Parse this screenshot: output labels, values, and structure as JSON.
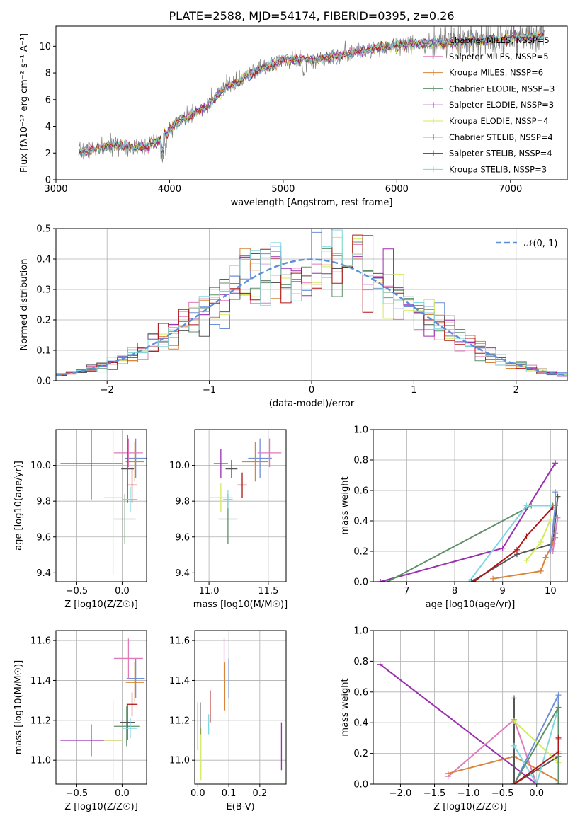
{
  "figure_title": "PLATE=2588, MJD=54174, FIBERID=0395, z=0.26",
  "colors": {
    "Chabrier MILES": "#6f8fd8",
    "Salpeter MILES": "#e07ab8",
    "Kroupa MILES": "#d9843a",
    "Chabrier ELODIE": "#5f8f6a",
    "Salpeter ELODIE": "#9b2eb0",
    "Kroupa ELODIE": "#d4ea5c",
    "Chabrier STELIB": "#555555",
    "Salpeter STELIB": "#b01515",
    "Kroupa STELIB": "#7fd8e0",
    "data": "#808080",
    "normal": "#5b8fd8"
  },
  "chart_data": [
    {
      "type": "line",
      "title": "PLATE=2588, MJD=54174, FIBERID=0395, z=0.26",
      "xlabel": "wavelength [Angstrom, rest frame]",
      "ylabel": "Flux [fλ10⁻¹⁷ erg cm⁻² s⁻¹ A⁻¹]",
      "xlim": [
        3000,
        7500
      ],
      "ylim": [
        0,
        11.5
      ],
      "xticks": [
        "3000",
        "4000",
        "5000",
        "6000",
        "7000"
      ],
      "yticks": [
        "0",
        "2",
        "4",
        "6",
        "8",
        "10"
      ],
      "grid": false,
      "legend_position": "top-right",
      "legend": [
        "Chabrier MILES, NSSP=5",
        "Salpeter MILES, NSSP=5",
        "Kroupa MILES, NSSP=6",
        "Chabrier ELODIE, NSSP=3",
        "Salpeter ELODIE, NSSP=3",
        "Kroupa ELODIE, NSSP=4",
        "Chabrier STELIB, NSSP=4",
        "Salpeter STELIB, NSSP=4",
        "Kroupa STELIB, NSSP=3"
      ],
      "continuum": {
        "x": [
          3200,
          3350,
          3550,
          3750,
          3900,
          4050,
          4300,
          4500,
          4800,
          5000,
          5300,
          5600,
          6000,
          6300,
          6600,
          7000,
          7300
        ],
        "y": [
          2.1,
          2.3,
          2.6,
          2.4,
          2.9,
          4.2,
          5.4,
          6.9,
          8.3,
          9.0,
          9.0,
          9.5,
          10.1,
          10.2,
          10.3,
          10.6,
          10.8
        ]
      },
      "data_range": [
        3200,
        7300
      ]
    },
    {
      "type": "line",
      "xlabel": "(data-model)/error",
      "ylabel": "Normed distribution",
      "xlim": [
        -2.5,
        2.5
      ],
      "ylim": [
        0,
        0.5
      ],
      "xticks": [
        "−2",
        "−1",
        "0",
        "1",
        "2"
      ],
      "yticks": [
        "0.0",
        "0.1",
        "0.2",
        "0.3",
        "0.4",
        "0.5"
      ],
      "grid": true,
      "legend_position": "top-right",
      "legend": [
        "𝒩(0, 1)"
      ],
      "bin_width": 0.1
    },
    {
      "type": "scatter",
      "xlabel": "Z [log10(Z/Z☉)]",
      "ylabel": "age  [log10(age/yr)]",
      "xlim": [
        -0.73,
        0.27
      ],
      "ylim": [
        9.35,
        10.2
      ],
      "xticks": [
        "−0.5",
        "0.0"
      ],
      "yticks": [
        "9.4",
        "9.6",
        "9.8",
        "10.0"
      ],
      "points": [
        {
          "name": "Chabrier MILES",
          "x": 0.15,
          "y": 10.04,
          "xerr": 0.12,
          "yerr": 0.11
        },
        {
          "name": "Salpeter MILES",
          "x": 0.07,
          "y": 10.07,
          "xerr": 0.16,
          "yerr": 0.08
        },
        {
          "name": "Kroupa MILES",
          "x": 0.14,
          "y": 10.02,
          "xerr": 0.1,
          "yerr": 0.11
        },
        {
          "name": "Chabrier ELODIE",
          "x": 0.03,
          "y": 9.7,
          "xerr": 0.12,
          "yerr": 0.14
        },
        {
          "name": "Salpeter ELODIE",
          "x": -0.34,
          "y": 10.01,
          "xerr": 0.34,
          "yerr": 0.2
        },
        {
          "name": "Kroupa ELODIE",
          "x": -0.1,
          "y": 9.82,
          "xerr": 0.1,
          "yerr": 0.43
        },
        {
          "name": "Chabrier STELIB",
          "x": 0.06,
          "y": 9.98,
          "xerr": 0.07,
          "yerr": 0.19
        },
        {
          "name": "Salpeter STELIB",
          "x": 0.11,
          "y": 9.89,
          "xerr": 0.06,
          "yerr": 0.1
        },
        {
          "name": "Kroupa STELIB",
          "x": 0.09,
          "y": 9.81,
          "xerr": 0.08,
          "yerr": 0.07
        }
      ]
    },
    {
      "type": "scatter",
      "xlabel": "mass [log10(M/M☉)]",
      "ylim": [
        9.35,
        10.2
      ],
      "xlim": [
        10.88,
        11.65
      ],
      "xticks": [
        "11.0",
        "11.5"
      ],
      "yticks": [
        "9.4",
        "9.6",
        "9.8",
        "10.0"
      ],
      "points": [
        {
          "name": "Chabrier MILES",
          "x": 11.43,
          "y": 10.04,
          "xerr": 0.1,
          "yerr": 0.11
        },
        {
          "name": "Salpeter MILES",
          "x": 11.51,
          "y": 10.07,
          "xerr": 0.1,
          "yerr": 0.08
        },
        {
          "name": "Kroupa MILES",
          "x": 11.39,
          "y": 10.02,
          "xerr": 0.11,
          "yerr": 0.11
        },
        {
          "name": "Chabrier ELODIE",
          "x": 11.16,
          "y": 9.7,
          "xerr": 0.08,
          "yerr": 0.14
        },
        {
          "name": "Salpeter ELODIE",
          "x": 11.1,
          "y": 10.01,
          "xerr": 0.06,
          "yerr": 0.08
        },
        {
          "name": "Kroupa ELODIE",
          "x": 11.1,
          "y": 9.82,
          "xerr": 0.1,
          "yerr": 0.08
        },
        {
          "name": "Chabrier STELIB",
          "x": 11.19,
          "y": 9.98,
          "xerr": 0.05,
          "yerr": 0.05
        },
        {
          "name": "Salpeter STELIB",
          "x": 11.28,
          "y": 9.89,
          "xerr": 0.04,
          "yerr": 0.07
        },
        {
          "name": "Kroupa STELIB",
          "x": 11.16,
          "y": 9.81,
          "xerr": 0.04,
          "yerr": 0.05
        }
      ]
    },
    {
      "type": "line",
      "xlabel": "age  [log10(age/yr)]",
      "ylabel": "mass weight",
      "xlim": [
        6.3,
        10.35
      ],
      "ylim": [
        0,
        1.0
      ],
      "xticks": [
        "7",
        "8",
        "9",
        "10"
      ],
      "yticks": [
        "0.0",
        "0.2",
        "0.4",
        "0.6",
        "0.8",
        "1.0"
      ],
      "grid": true,
      "series": [
        {
          "name": "Salpeter ELODIE",
          "x": [
            6.45,
            9.0,
            10.1
          ],
          "y": [
            0.0,
            0.22,
            0.78
          ]
        },
        {
          "name": "Chabrier ELODIE",
          "x": [
            6.6,
            9.6,
            10.05
          ],
          "y": [
            0.0,
            0.5,
            0.5
          ]
        },
        {
          "name": "Kroupa STELIB",
          "x": [
            8.3,
            9.5,
            10.0
          ],
          "y": [
            0.0,
            0.5,
            0.5
          ]
        },
        {
          "name": "Chabrier STELIB",
          "x": [
            8.35,
            9.3,
            10.05,
            10.15
          ],
          "y": [
            0.0,
            0.18,
            0.25,
            0.56
          ]
        },
        {
          "name": "Salpeter STELIB",
          "x": [
            8.4,
            9.3,
            9.5,
            10.05
          ],
          "y": [
            0.0,
            0.21,
            0.3,
            0.49
          ]
        },
        {
          "name": "Kroupa ELODIE",
          "x": [
            9.5,
            9.8,
            10.0
          ],
          "y": [
            0.14,
            0.26,
            0.41
          ]
        },
        {
          "name": "Kroupa MILES",
          "x": [
            8.8,
            9.8,
            9.9,
            10.05,
            10.1
          ],
          "y": [
            0.02,
            0.07,
            0.16,
            0.25,
            0.29
          ]
        },
        {
          "name": "Chabrier MILES",
          "x": [
            10.0,
            10.1,
            10.1
          ],
          "y": [
            0.2,
            0.5,
            0.59
          ]
        },
        {
          "name": "Salpeter MILES",
          "x": [
            10.05,
            10.1,
            10.15
          ],
          "y": [
            0.2,
            0.32,
            0.42
          ]
        }
      ]
    },
    {
      "type": "scatter",
      "xlabel": "Z [log10(Z/Z☉)]",
      "ylabel": "mass [log10(M/M☉)]",
      "xlim": [
        -0.73,
        0.27
      ],
      "ylim": [
        10.88,
        11.65
      ],
      "xticks": [
        "−0.5",
        "0.0"
      ],
      "yticks": [
        "11.0",
        "11.2",
        "11.4",
        "11.6"
      ],
      "points": [
        {
          "name": "Chabrier MILES",
          "x": 0.15,
          "y": 11.41,
          "xerr": 0.1,
          "yerr": 0.1
        },
        {
          "name": "Salpeter MILES",
          "x": 0.07,
          "y": 11.51,
          "xerr": 0.16,
          "yerr": 0.1
        },
        {
          "name": "Kroupa MILES",
          "x": 0.14,
          "y": 11.39,
          "xerr": 0.1,
          "yerr": 0.1
        },
        {
          "name": "Chabrier ELODIE",
          "x": 0.05,
          "y": 11.17,
          "xerr": 0.14,
          "yerr": 0.1
        },
        {
          "name": "Salpeter ELODIE",
          "x": -0.34,
          "y": 11.1,
          "xerr": 0.34,
          "yerr": 0.08
        },
        {
          "name": "Kroupa ELODIE",
          "x": -0.1,
          "y": 11.1,
          "xerr": 0.1,
          "yerr": 0.2
        },
        {
          "name": "Chabrier STELIB",
          "x": 0.06,
          "y": 11.19,
          "xerr": 0.08,
          "yerr": 0.09
        },
        {
          "name": "Salpeter STELIB",
          "x": 0.11,
          "y": 11.28,
          "xerr": 0.06,
          "yerr": 0.06
        },
        {
          "name": "Kroupa STELIB",
          "x": 0.09,
          "y": 11.16,
          "xerr": 0.08,
          "yerr": 0.05
        }
      ]
    },
    {
      "type": "scatter",
      "xlabel": "E(B-V)",
      "xlim": [
        -0.01,
        0.285
      ],
      "ylim": [
        10.88,
        11.65
      ],
      "xticks": [
        "0.0",
        "0.1",
        "0.2"
      ],
      "yticks": [
        "11.0",
        "11.2",
        "11.4",
        "11.6"
      ],
      "points": [
        {
          "name": "Chabrier MILES",
          "x": 0.1,
          "y": 11.41,
          "yerr": 0.1
        },
        {
          "name": "Salpeter MILES",
          "x": 0.085,
          "y": 11.51,
          "yerr": 0.1
        },
        {
          "name": "Kroupa MILES",
          "x": 0.087,
          "y": 11.37,
          "yerr": 0.12
        },
        {
          "name": "Chabrier ELODIE",
          "x": 0.0,
          "y": 11.17,
          "yerr": 0.12
        },
        {
          "name": "Salpeter ELODIE",
          "x": 0.27,
          "y": 11.07,
          "yerr": 0.12
        },
        {
          "name": "Kroupa ELODIE",
          "x": 0.01,
          "y": 11.03,
          "yerr": 0.13
        },
        {
          "name": "Chabrier STELIB",
          "x": 0.008,
          "y": 11.21,
          "yerr": 0.08
        },
        {
          "name": "Salpeter STELIB",
          "x": 0.04,
          "y": 11.27,
          "yerr": 0.08
        },
        {
          "name": "Kroupa STELIB",
          "x": 0.035,
          "y": 11.18,
          "yerr": 0.05
        }
      ]
    },
    {
      "type": "line",
      "xlabel": "Z [log10(Z/Z☉)]",
      "ylabel": "mass weight",
      "xlim": [
        -2.4,
        0.45
      ],
      "ylim": [
        0,
        1.0
      ],
      "xticks": [
        "−2.0",
        "−1.5",
        "−1.0",
        "−0.5",
        "0.0"
      ],
      "yticks": [
        "0.0",
        "0.2",
        "0.4",
        "0.6",
        "0.8",
        "1.0"
      ],
      "grid": true,
      "series": [
        {
          "name": "Salpeter ELODIE",
          "x": [
            -2.3,
            0.0
          ],
          "y": [
            0.78,
            0.0
          ]
        },
        {
          "name": "Salpeter MILES",
          "x": [
            -1.3,
            -0.33,
            0.0
          ],
          "y": [
            0.05,
            0.42,
            0.0
          ]
        },
        {
          "name": "Kroupa MILES",
          "x": [
            -1.3,
            -0.33,
            0.32,
            0.32
          ],
          "y": [
            0.07,
            0.18,
            0.02,
            0.29
          ]
        },
        {
          "name": "Chabrier STELIB",
          "x": [
            -0.33,
            -0.33,
            0.32,
            0.32
          ],
          "y": [
            0.56,
            0.0,
            0.18,
            0.0
          ]
        },
        {
          "name": "Chabrier MILES",
          "x": [
            -0.33,
            0.32,
            0.32
          ],
          "y": [
            0.0,
            0.58,
            0.2
          ]
        },
        {
          "name": "Kroupa STELIB",
          "x": [
            -0.33,
            0.0,
            0.32
          ],
          "y": [
            0.25,
            0.0,
            0.5
          ]
        },
        {
          "name": "Kroupa ELODIE",
          "x": [
            -0.33,
            0.32
          ],
          "y": [
            0.41,
            0.14
          ]
        },
        {
          "name": "Chabrier ELODIE",
          "x": [
            -0.33,
            0.32,
            0.32
          ],
          "y": [
            0.0,
            0.5,
            0.0
          ]
        },
        {
          "name": "Salpeter STELIB",
          "x": [
            -0.33,
            0.32,
            0.32
          ],
          "y": [
            0.0,
            0.21,
            0.3
          ]
        }
      ]
    }
  ]
}
